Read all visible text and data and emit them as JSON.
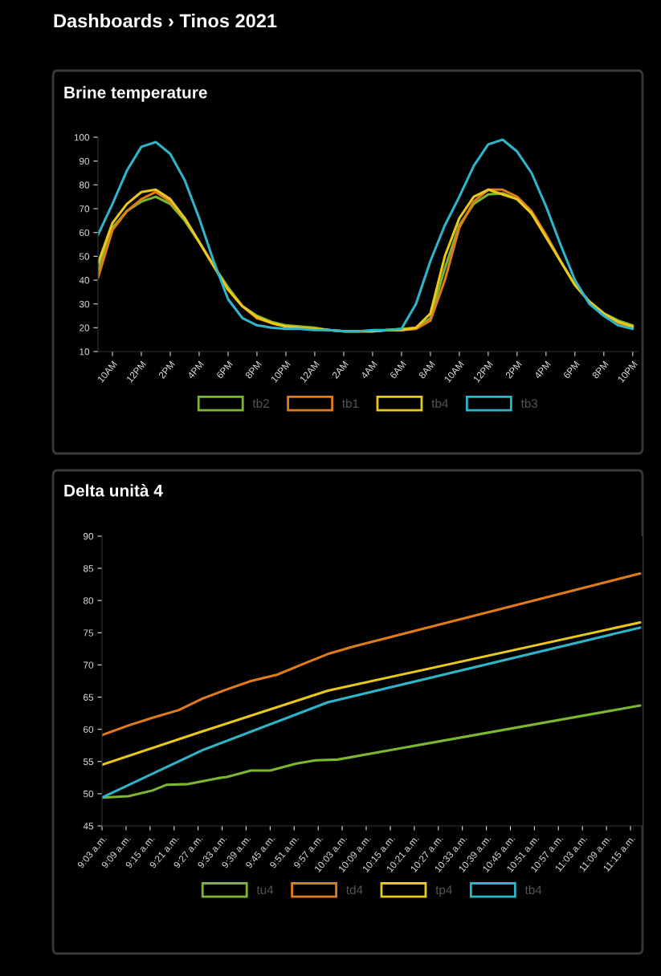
{
  "chart_data": [
    {
      "type": "line",
      "title": "Brine temperature",
      "annotations": [
        "Dashboards › Tinos 2021"
      ],
      "categories": [
        null,
        "10AM",
        null,
        "12PM",
        null,
        "2PM",
        null,
        "4PM",
        null,
        "6PM",
        null,
        "8PM",
        null,
        "10PM",
        null,
        "12AM",
        null,
        "2AM",
        null,
        "4AM",
        null,
        "6AM",
        null,
        "8AM",
        null,
        "10AM",
        null,
        "12PM",
        null,
        "2PM",
        null,
        "4PM",
        null,
        "6PM",
        null,
        "8PM",
        null,
        "10PM"
      ],
      "series": [
        {
          "name": "tb2",
          "color": "#7cb82f",
          "values": [
            44,
            62,
            69,
            73,
            75,
            72,
            65,
            56,
            46,
            37,
            29,
            25,
            22.5,
            21,
            20.5,
            20,
            19,
            18.5,
            18.5,
            18.5,
            19,
            19.5,
            20,
            24,
            45,
            63,
            72,
            76,
            76.5,
            74,
            68,
            59,
            48,
            38,
            31,
            26,
            23,
            21
          ]
        },
        {
          "name": "tb1",
          "color": "#e07b1a",
          "values": [
            41,
            61,
            69,
            74,
            77,
            73,
            66,
            56,
            46,
            36,
            29,
            24,
            22,
            20.5,
            20,
            19.5,
            19,
            18.5,
            18.5,
            18.5,
            19,
            19,
            19.5,
            23,
            40,
            62,
            73,
            78,
            78,
            75,
            69,
            59,
            48,
            38,
            31,
            25,
            22,
            20
          ]
        },
        {
          "name": "tb4",
          "color": "#e8c81a",
          "values": [
            47,
            64,
            72,
            77,
            78,
            74,
            66,
            56,
            46,
            36,
            29,
            24.5,
            22,
            20.5,
            20,
            19.5,
            19,
            18.5,
            18.5,
            18.5,
            19,
            19,
            20,
            26,
            50,
            66,
            75,
            78,
            76,
            74,
            68,
            58,
            48,
            38,
            31,
            26,
            22.5,
            20.5
          ]
        },
        {
          "name": "tb3",
          "color": "#2eb5c9",
          "values": [
            59,
            72,
            86,
            96,
            98,
            93,
            82,
            66,
            48,
            32,
            24,
            21,
            20,
            19.5,
            19.5,
            19,
            19,
            18.5,
            18.5,
            19,
            19,
            19.5,
            30,
            48,
            63,
            75,
            88,
            97,
            99,
            94,
            85,
            71,
            55,
            40,
            30,
            25,
            21,
            19.5
          ]
        }
      ],
      "ylim": [
        10,
        100
      ],
      "yticks": [
        10,
        20,
        30,
        40,
        50,
        60,
        70,
        80,
        90,
        100
      ],
      "legend": "bottom",
      "marker": "none",
      "line_style": "solid"
    },
    {
      "type": "line",
      "title": "Delta unità 4",
      "series": [
        {
          "name": "tu4",
          "color": "#7cb82f",
          "x": [
            9.05,
            9.16,
            9.26,
            9.32,
            9.41,
            9.53,
            9.57,
            9.67,
            9.75,
            9.86,
            9.94,
            10.03,
            11.29
          ],
          "values": [
            49.4,
            49.6,
            50.5,
            51.4,
            51.5,
            52.4,
            52.6,
            53.6,
            53.6,
            54.7,
            55.2,
            55.3,
            63.7
          ]
        },
        {
          "name": "td4",
          "color": "#e07b1a",
          "x": [
            9.05,
            9.16,
            9.26,
            9.37,
            9.47,
            9.57,
            9.67,
            9.78,
            9.89,
            9.99,
            10.1,
            11.29
          ],
          "values": [
            59.1,
            60.6,
            61.8,
            63,
            64.8,
            66.2,
            67.5,
            68.5,
            70.2,
            71.7,
            72.9,
            84.2
          ]
        },
        {
          "name": "tp4",
          "color": "#e8c81a",
          "x": [
            9.05,
            9.47,
            9.99,
            11.29
          ],
          "values": [
            54.5,
            59.7,
            66,
            76.6
          ]
        },
        {
          "name": "tb4",
          "color": "#2eb5c9",
          "x": [
            9.05,
            9.47,
            9.99,
            11.29
          ],
          "values": [
            49.4,
            56.8,
            64.2,
            75.8
          ]
        }
      ],
      "xlim": [
        9.05,
        11.3
      ],
      "xticks": [
        {
          "value": 9.05,
          "label": "9:03 a.m."
        },
        {
          "value": 9.15,
          "label": "9:09 a.m."
        },
        {
          "value": 9.25,
          "label": "9:15 a.m."
        },
        {
          "value": 9.35,
          "label": "9:21 a.m."
        },
        {
          "value": 9.45,
          "label": "9:27 a.m."
        },
        {
          "value": 9.55,
          "label": "9:33 a.m."
        },
        {
          "value": 9.65,
          "label": "9:39 a.m."
        },
        {
          "value": 9.75,
          "label": "9:45 a.m."
        },
        {
          "value": 9.85,
          "label": "9:51 a.m."
        },
        {
          "value": 9.95,
          "label": "9:57 a.m."
        },
        {
          "value": 10.05,
          "label": "10:03 a.m."
        },
        {
          "value": 10.15,
          "label": "10:09 a.m."
        },
        {
          "value": 10.25,
          "label": "10:15 a.m."
        },
        {
          "value": 10.35,
          "label": "10:21 a.m."
        },
        {
          "value": 10.45,
          "label": "10:27 a.m."
        },
        {
          "value": 10.55,
          "label": "10:33 a.m."
        },
        {
          "value": 10.65,
          "label": "10:39 a.m."
        },
        {
          "value": 10.75,
          "label": "10:45 a.m."
        },
        {
          "value": 10.85,
          "label": "10:51 a.m."
        },
        {
          "value": 10.95,
          "label": "10:57 a.m."
        },
        {
          "value": 11.05,
          "label": "11:03 a.m."
        },
        {
          "value": 11.15,
          "label": "11:09 a.m."
        },
        {
          "value": 11.25,
          "label": "11:15 a.m."
        }
      ],
      "ylim": [
        45,
        90
      ],
      "yticks": [
        45,
        50,
        55,
        60,
        65,
        70,
        75,
        80,
        85,
        90
      ],
      "legend": "bottom",
      "marker": "none",
      "line_style": "solid"
    }
  ]
}
